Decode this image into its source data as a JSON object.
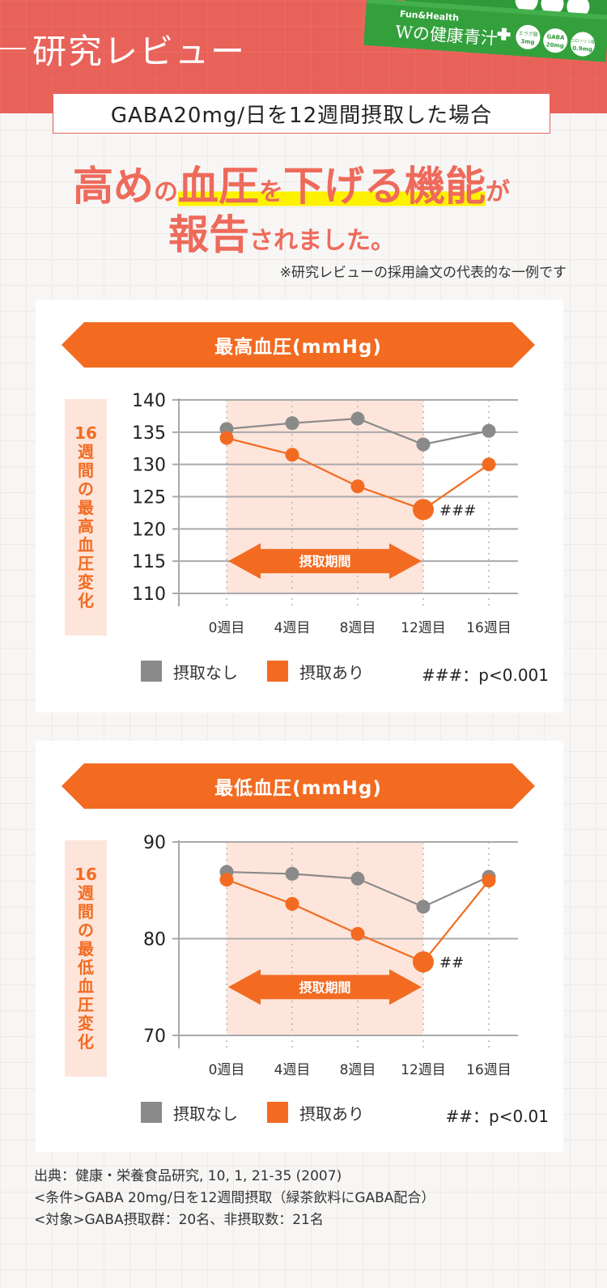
{
  "header": {
    "section_title": "研究レビュー",
    "product": {
      "brand": "Fun&Health",
      "name": "Wの健康青汁",
      "plus_label": "プラス",
      "badges": [
        {
          "name": "エラグ酸",
          "amount": "3mg"
        },
        {
          "name": "GABA",
          "amount": "20mg"
        },
        {
          "name": "コロソリン酸",
          "amount": "0.9mg"
        }
      ]
    }
  },
  "subtitle": "GABA20mg/日を12週間摂取した場合",
  "headline": {
    "line1_parts": [
      "高め",
      "の",
      "血圧",
      "を",
      "下げる機能",
      "が"
    ],
    "line2_parts": [
      "報告",
      "されました。"
    ]
  },
  "note": "※研究レビューの採用論文の代表的な一例です",
  "colors": {
    "accent_red": "#e8625a",
    "headline_red": "#ee6a5b",
    "orange": "#f26b21",
    "gray_series": "#8a8a8a",
    "highlight_yellow": "#fff200",
    "period_shade": "#fde5db"
  },
  "chart_data": [
    {
      "type": "line",
      "title": "最高血圧(mmHg)",
      "ylabel": "16週間の最高血圧変化",
      "xlabel": "",
      "categories": [
        "0週目",
        "4週目",
        "8週目",
        "12週目",
        "16週目"
      ],
      "series": [
        {
          "name": "摂取なし",
          "color": "#8a8a8a",
          "values": [
            135.5,
            136.4,
            137.1,
            133.1,
            135.2
          ]
        },
        {
          "name": "摂取あり",
          "color": "#f26b21",
          "values": [
            134.1,
            131.5,
            126.6,
            123.0,
            130.0
          ]
        }
      ],
      "ylim": [
        110,
        140
      ],
      "yticks": [
        "140",
        "135",
        "130",
        "125",
        "120",
        "115",
        "110"
      ],
      "grid": true,
      "shaded_period": {
        "label": "摂取期間",
        "from": "0週目",
        "to": "12週目"
      },
      "annotation": {
        "at": "12週目",
        "series": "摂取あり",
        "text": "###"
      },
      "significance_note": "###：p<0.001",
      "legend_position": "bottom"
    },
    {
      "type": "line",
      "title": "最低血圧(mmHg)",
      "ylabel": "16週間の最低血圧変化",
      "xlabel": "",
      "categories": [
        "0週目",
        "4週目",
        "8週目",
        "12週目",
        "16週目"
      ],
      "series": [
        {
          "name": "摂取なし",
          "color": "#8a8a8a",
          "values": [
            86.9,
            86.7,
            86.2,
            83.3,
            86.4
          ]
        },
        {
          "name": "摂取あり",
          "color": "#f26b21",
          "values": [
            86.1,
            83.6,
            80.5,
            77.6,
            86.0
          ]
        }
      ],
      "ylim": [
        70,
        90
      ],
      "yticks": [
        "90",
        "80",
        "70"
      ],
      "grid": true,
      "shaded_period": {
        "label": "摂取期間",
        "from": "0週目",
        "to": "12週目"
      },
      "annotation": {
        "at": "12週目",
        "series": "摂取あり",
        "text": "##"
      },
      "significance_note": "##：p<0.01",
      "legend_position": "bottom"
    }
  ],
  "charts": [
    {
      "title": "最高血圧(mmHg)",
      "ylabel_chars": [
        "16",
        "週",
        "間",
        "の",
        "最",
        "高",
        "血",
        "圧",
        "変",
        "化"
      ],
      "period_label": "摂取期間",
      "annotation": "###",
      "legend": [
        "摂取なし",
        "摂取あり"
      ],
      "pnote": "###：p<0.001"
    },
    {
      "title": "最低血圧(mmHg)",
      "ylabel_chars": [
        "16",
        "週",
        "間",
        "の",
        "最",
        "低",
        "血",
        "圧",
        "変",
        "化"
      ],
      "period_label": "摂取期間",
      "annotation": "##",
      "legend": [
        "摂取なし",
        "摂取あり"
      ],
      "pnote": "##：p<0.01"
    }
  ],
  "footer": {
    "source": "出典：健康・栄養食品研究, 10, 1, 21-35 (2007)",
    "condition": "<条件>GABA 20mg/日を12週間摂取（緑茶飲料にGABA配合）",
    "subjects": "<対象>GABA摂取群：20名、非摂取数：21名"
  }
}
